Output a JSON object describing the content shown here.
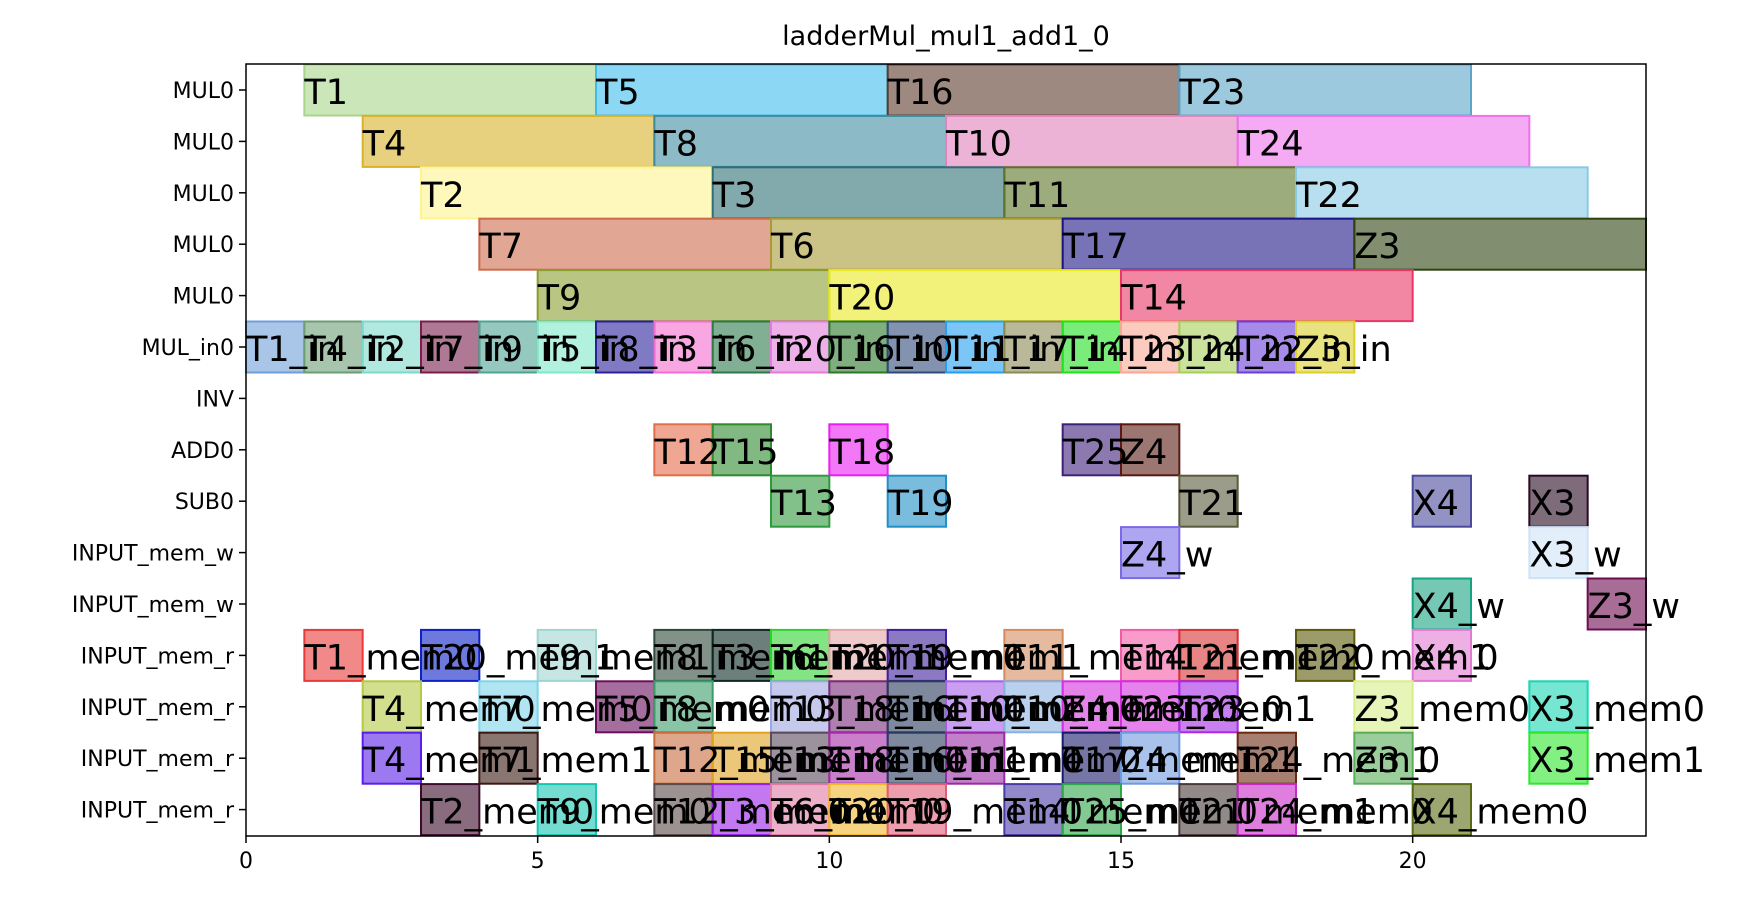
{
  "chart_data": {
    "type": "gantt",
    "title": "ladderMul_mul1_add1_0",
    "xlim": [
      0,
      24
    ],
    "xticks": [
      0,
      5,
      10,
      15,
      20
    ],
    "rows": [
      "MUL0",
      "MUL0",
      "MUL0",
      "MUL0",
      "MUL0",
      "MUL_in0",
      "INV",
      "ADD0",
      "SUB0",
      "INPUT_mem_w",
      "INPUT_mem_w",
      "INPUT_mem_r",
      "INPUT_mem_r",
      "INPUT_mem_r",
      "INPUT_mem_r"
    ],
    "tasks": [
      {
        "row": 0,
        "label": "T1",
        "start": 1,
        "end": 6,
        "color": "#a8d58a"
      },
      {
        "row": 0,
        "label": "T5",
        "start": 6,
        "end": 11,
        "color": "#3fbcec"
      },
      {
        "row": 0,
        "label": "T16",
        "start": 11,
        "end": 16,
        "color": "#5e3a2c"
      },
      {
        "row": 0,
        "label": "T23",
        "start": 16,
        "end": 21,
        "color": "#5aa5c8"
      },
      {
        "row": 1,
        "label": "T4",
        "start": 2,
        "end": 7,
        "color": "#d7b22a"
      },
      {
        "row": 1,
        "label": "T8",
        "start": 7,
        "end": 12,
        "color": "#3f8ca0"
      },
      {
        "row": 1,
        "label": "T10",
        "start": 12,
        "end": 17,
        "color": "#e181bd"
      },
      {
        "row": 1,
        "label": "T24",
        "start": 17,
        "end": 22,
        "color": "#ef72ec"
      },
      {
        "row": 2,
        "label": "T2",
        "start": 3,
        "end": 8,
        "color": "#fdf490"
      },
      {
        "row": 2,
        "label": "T3",
        "start": 8,
        "end": 13,
        "color": "#2f6f74"
      },
      {
        "row": 2,
        "label": "T11",
        "start": 13,
        "end": 18,
        "color": "#5b7427"
      },
      {
        "row": 2,
        "label": "T22",
        "start": 18,
        "end": 23,
        "color": "#88c9e4"
      },
      {
        "row": 3,
        "label": "T7",
        "start": 4,
        "end": 9,
        "color": "#cd6a4c"
      },
      {
        "row": 3,
        "label": "T6",
        "start": 9,
        "end": 14,
        "color": "#a89a36"
      },
      {
        "row": 3,
        "label": "T17",
        "start": 14,
        "end": 19,
        "color": "#1e1585"
      },
      {
        "row": 3,
        "label": "Z3",
        "start": 19,
        "end": 24,
        "color": "#2e4310"
      },
      {
        "row": 4,
        "label": "T9",
        "start": 5,
        "end": 10,
        "color": "#8a9e2e"
      },
      {
        "row": 4,
        "label": "T20",
        "start": 10,
        "end": 15,
        "color": "#eaea22"
      },
      {
        "row": 4,
        "label": "T14",
        "start": 15,
        "end": 20,
        "color": "#e73766"
      },
      {
        "row": 5,
        "label": "T1_in",
        "start": 0,
        "end": 1,
        "color": "#6f9fd8"
      },
      {
        "row": 5,
        "label": "T4_in",
        "start": 1,
        "end": 2,
        "color": "#6a9e74"
      },
      {
        "row": 5,
        "label": "T2_in",
        "start": 2,
        "end": 3,
        "color": "#7dd9cc"
      },
      {
        "row": 5,
        "label": "T7_in",
        "start": 3,
        "end": 4,
        "color": "#7a1e4c"
      },
      {
        "row": 5,
        "label": "T9_in",
        "start": 4,
        "end": 5,
        "color": "#4ea493"
      },
      {
        "row": 5,
        "label": "T5_in",
        "start": 5,
        "end": 6,
        "color": "#7ee8c8"
      },
      {
        "row": 5,
        "label": "T8_in",
        "start": 6,
        "end": 7,
        "color": "#2b1f9c"
      },
      {
        "row": 5,
        "label": "T3_in",
        "start": 7,
        "end": 8,
        "color": "#f56cd1"
      },
      {
        "row": 5,
        "label": "T6_in",
        "start": 8,
        "end": 9,
        "color": "#2c7a4c"
      },
      {
        "row": 5,
        "label": "T20_in",
        "start": 9,
        "end": 10,
        "color": "#e37cd8"
      },
      {
        "row": 5,
        "label": "T16_in",
        "start": 10,
        "end": 11,
        "color": "#2a7a2a"
      },
      {
        "row": 5,
        "label": "T10_in",
        "start": 11,
        "end": 12,
        "color": "#2f4a7a"
      },
      {
        "row": 5,
        "label": "T11_in",
        "start": 12,
        "end": 13,
        "color": "#259ff2"
      },
      {
        "row": 5,
        "label": "T17_in",
        "start": 13,
        "end": 14,
        "color": "#8a8a55"
      },
      {
        "row": 5,
        "label": "T14_in",
        "start": 14,
        "end": 15,
        "color": "#22e022"
      },
      {
        "row": 5,
        "label": "T23_in",
        "start": 15,
        "end": 16,
        "color": "#f7a992"
      },
      {
        "row": 5,
        "label": "T24_in",
        "start": 16,
        "end": 17,
        "color": "#a6cf58"
      },
      {
        "row": 5,
        "label": "T22_in",
        "start": 17,
        "end": 18,
        "color": "#6a3fd8"
      },
      {
        "row": 5,
        "label": "Z3_in",
        "start": 18,
        "end": 19,
        "color": "#d9d02c"
      },
      {
        "row": 7,
        "label": "T12",
        "start": 7,
        "end": 8,
        "color": "#e46b4b"
      },
      {
        "row": 7,
        "label": "T15",
        "start": 8,
        "end": 9,
        "color": "#2e8a2e"
      },
      {
        "row": 7,
        "label": "T18",
        "start": 10,
        "end": 11,
        "color": "#ea1ef2"
      },
      {
        "row": 7,
        "label": "T25",
        "start": 14,
        "end": 15,
        "color": "#3e1f7a"
      },
      {
        "row": 7,
        "label": "Z4",
        "start": 15,
        "end": 16,
        "color": "#5a1a12"
      },
      {
        "row": 8,
        "label": "T13",
        "start": 9,
        "end": 10,
        "color": "#2f9a3c"
      },
      {
        "row": 8,
        "label": "T19",
        "start": 11,
        "end": 12,
        "color": "#2190c8"
      },
      {
        "row": 8,
        "label": "T21",
        "start": 16,
        "end": 17,
        "color": "#5a5a3c"
      },
      {
        "row": 8,
        "label": "X4",
        "start": 20,
        "end": 21,
        "color": "#4a4a9c"
      },
      {
        "row": 8,
        "label": "X3",
        "start": 22,
        "end": 23,
        "color": "#2a0a22"
      },
      {
        "row": 9,
        "label": "Z4_w",
        "start": 15,
        "end": 16,
        "color": "#7a6ae8"
      },
      {
        "row": 9,
        "label": "X3_w",
        "start": 22,
        "end": 23,
        "color": "#cfe2f6"
      },
      {
        "row": 10,
        "label": "X4_w",
        "start": 20,
        "end": 21,
        "color": "#17a382"
      },
      {
        "row": 10,
        "label": "Z3_w",
        "start": 23,
        "end": 24,
        "color": "#6c0c52"
      },
      {
        "row": 11,
        "label": "T1_mem0",
        "start": 1,
        "end": 2,
        "color": "#e83a3a"
      },
      {
        "row": 11,
        "label": "T20_mem1",
        "start": 3,
        "end": 4,
        "color": "#0e20c8"
      },
      {
        "row": 11,
        "label": "T9_mem1",
        "start": 5,
        "end": 6,
        "color": "#9fd6d0"
      },
      {
        "row": 11,
        "label": "T8_mem1",
        "start": 7,
        "end": 8,
        "color": "#2e4a3a"
      },
      {
        "row": 11,
        "label": "T3_mem1",
        "start": 8,
        "end": 9,
        "color": "#0a2a22"
      },
      {
        "row": 11,
        "label": "T6_mem1",
        "start": 9,
        "end": 10,
        "color": "#2ed22e"
      },
      {
        "row": 11,
        "label": "T20_mem0",
        "start": 10,
        "end": 11,
        "color": "#e2a6a6"
      },
      {
        "row": 11,
        "label": "T19_mem1",
        "start": 11,
        "end": 12,
        "color": "#3e1f9c"
      },
      {
        "row": 11,
        "label": "T11_mem1",
        "start": 13,
        "end": 14,
        "color": "#d48c5e"
      },
      {
        "row": 11,
        "label": "T14_mem1",
        "start": 15,
        "end": 16,
        "color": "#f35ba6"
      },
      {
        "row": 11,
        "label": "T21_mem0",
        "start": 16,
        "end": 17,
        "color": "#d73232"
      },
      {
        "row": 11,
        "label": "T22_mem1",
        "start": 18,
        "end": 19,
        "color": "#5a5a08"
      },
      {
        "row": 11,
        "label": "X4_0",
        "start": 20,
        "end": 21,
        "color": "#e27ad4"
      },
      {
        "row": 12,
        "label": "T4_mem0",
        "start": 2,
        "end": 3,
        "color": "#b2c944"
      },
      {
        "row": 12,
        "label": "T7_mem0",
        "start": 4,
        "end": 5,
        "color": "#7ed4ea"
      },
      {
        "row": 12,
        "label": "T5_mem0",
        "start": 6,
        "end": 7,
        "color": "#6a0e5e"
      },
      {
        "row": 12,
        "label": "T8_mem0",
        "start": 7,
        "end": 8,
        "color": "#3c9c6a"
      },
      {
        "row": 12,
        "label": "T13_mem1",
        "start": 9,
        "end": 10,
        "color": "#9ea6e0"
      },
      {
        "row": 12,
        "label": "T18_mem0",
        "start": 10,
        "end": 11,
        "color": "#7a2a7a"
      },
      {
        "row": 12,
        "label": "T16_mem1",
        "start": 11,
        "end": 12,
        "color": "#2a3a5e"
      },
      {
        "row": 12,
        "label": "T10_mem0",
        "start": 12,
        "end": 13,
        "color": "#a65ee8"
      },
      {
        "row": 12,
        "label": "T10_mem1",
        "start": 13,
        "end": 14,
        "color": "#8ab2e0"
      },
      {
        "row": 12,
        "label": "Z4_mem0",
        "start": 14,
        "end": 15,
        "color": "#d62ee0"
      },
      {
        "row": 12,
        "label": "T23_mem1",
        "start": 15,
        "end": 16,
        "color": "#d62ee0"
      },
      {
        "row": 12,
        "label": "T23_0",
        "start": 16,
        "end": 17,
        "color": "#a62ae8"
      },
      {
        "row": 12,
        "label": "Z3_mem0",
        "start": 19,
        "end": 20,
        "color": "#d9ef8a"
      },
      {
        "row": 12,
        "label": "X3_mem0",
        "start": 22,
        "end": 23,
        "color": "#17d6b2"
      },
      {
        "row": 13,
        "label": "T4_mem1",
        "start": 2,
        "end": 3,
        "color": "#5a1ee8"
      },
      {
        "row": 13,
        "label": "T7_mem1",
        "start": 4,
        "end": 5,
        "color": "#3c1a12"
      },
      {
        "row": 13,
        "label": "T12_mem1",
        "start": 7,
        "end": 8,
        "color": "#c86a3c"
      },
      {
        "row": 13,
        "label": "T15_mem1",
        "start": 8,
        "end": 9,
        "color": "#e0a020"
      },
      {
        "row": 13,
        "label": "T13_mem0",
        "start": 9,
        "end": 10,
        "color": "#5a4a5e"
      },
      {
        "row": 13,
        "label": "T18_mem1",
        "start": 10,
        "end": 11,
        "color": "#a62aa6"
      },
      {
        "row": 13,
        "label": "T16_mem0",
        "start": 11,
        "end": 12,
        "color": "#2a3a5e"
      },
      {
        "row": 13,
        "label": "T11_mem0",
        "start": 12,
        "end": 13,
        "color": "#9a2aa6"
      },
      {
        "row": 13,
        "label": "T17_mem1",
        "start": 14,
        "end": 15,
        "color": "#1a1a6a"
      },
      {
        "row": 13,
        "label": "Z4_mem1",
        "start": 15,
        "end": 16,
        "color": "#6e9ae0"
      },
      {
        "row": 13,
        "label": "T24_mem1",
        "start": 17,
        "end": 18,
        "color": "#6a2a12"
      },
      {
        "row": 13,
        "label": "Z3_0",
        "start": 19,
        "end": 20,
        "color": "#5aae5a"
      },
      {
        "row": 13,
        "label": "X3_mem1",
        "start": 22,
        "end": 23,
        "color": "#2ee82e"
      },
      {
        "row": 14,
        "label": "T2_mem0",
        "start": 3,
        "end": 4,
        "color": "#3c0a2a"
      },
      {
        "row": 14,
        "label": "T9_mem0",
        "start": 5,
        "end": 6,
        "color": "#17c6b2"
      },
      {
        "row": 14,
        "label": "T12_mem0",
        "start": 7,
        "end": 8,
        "color": "#5a4a4a"
      },
      {
        "row": 14,
        "label": "T3_mem0",
        "start": 8,
        "end": 9,
        "color": "#9a1ee8"
      },
      {
        "row": 14,
        "label": "T6_mem0",
        "start": 9,
        "end": 10,
        "color": "#e07aa6"
      },
      {
        "row": 14,
        "label": "T20_0",
        "start": 10,
        "end": 11,
        "color": "#f2b82a"
      },
      {
        "row": 14,
        "label": "T19_mem0",
        "start": 11,
        "end": 12,
        "color": "#e05e7a"
      },
      {
        "row": 14,
        "label": "T14_mem0",
        "start": 13,
        "end": 14,
        "color": "#4a3aa6"
      },
      {
        "row": 14,
        "label": "T25_mem0",
        "start": 14,
        "end": 15,
        "color": "#2ea64a"
      },
      {
        "row": 14,
        "label": "T21_mem1",
        "start": 16,
        "end": 17,
        "color": "#4a3a3a"
      },
      {
        "row": 14,
        "label": "T24_mem0",
        "start": 17,
        "end": 18,
        "color": "#c82ac8"
      },
      {
        "row": 14,
        "label": "X4_mem0",
        "start": 20,
        "end": 21,
        "color": "#5a6a12"
      }
    ]
  }
}
